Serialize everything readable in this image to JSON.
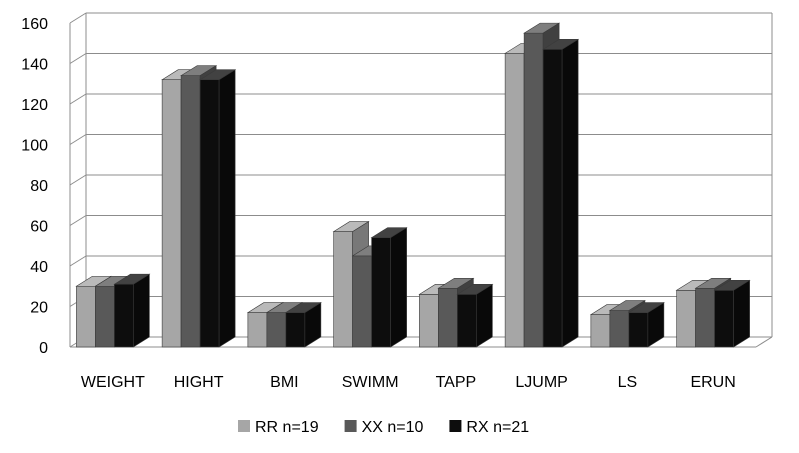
{
  "chart_data": {
    "type": "bar",
    "categories": [
      "WEIGHT",
      "HIGHT",
      "BMI",
      "SWIMM",
      "TAPP",
      "LJUMP",
      "LS",
      "ERUN"
    ],
    "series": [
      {
        "name": "RR n=19",
        "color": "#a6a6a6",
        "values": [
          30,
          132,
          17,
          57,
          26,
          145,
          16,
          28
        ]
      },
      {
        "name": "XX  n=10",
        "color": "#595959",
        "values": [
          30,
          134,
          17,
          45,
          29,
          155,
          18,
          29
        ]
      },
      {
        "name": "RX   n=21",
        "color": "#0d0d0d",
        "values": [
          31,
          132,
          17,
          54,
          26,
          147,
          17,
          28
        ]
      }
    ],
    "ylim": [
      0,
      160
    ],
    "yticks": [
      "0",
      "20",
      "40",
      "60",
      "80",
      "100",
      "120",
      "140",
      "160"
    ],
    "grid": true,
    "view": "3d-clustered-column",
    "legend_position": "bottom"
  }
}
